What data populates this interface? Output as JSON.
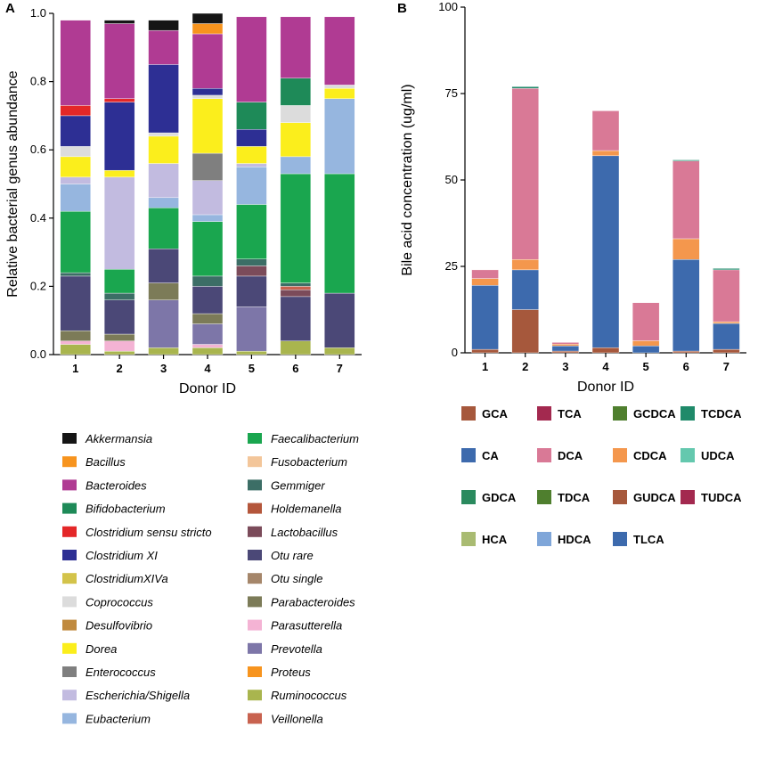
{
  "panel_a_label": "A",
  "panel_b_label": "B",
  "chart_data": [
    {
      "type": "bar",
      "stacked": true,
      "title": "",
      "xlabel": "Donor ID",
      "ylabel": "Relative bacterial genus abundance",
      "categories": [
        "1",
        "2",
        "3",
        "4",
        "5",
        "6",
        "7"
      ],
      "ylim": [
        0,
        1.0
      ],
      "yticks": [
        "0.0",
        "0.2",
        "0.4",
        "0.6",
        "0.8",
        "1.0"
      ],
      "series": [
        {
          "name": "Ruminococcus",
          "color": "#a9b54e",
          "values": [
            0.03,
            0.01,
            0.02,
            0.02,
            0.01,
            0.04,
            0.02
          ]
        },
        {
          "name": "Parasutterella",
          "color": "#f4b3d4",
          "values": [
            0.01,
            0.03,
            0,
            0.01,
            0,
            0,
            0
          ]
        },
        {
          "name": "Prevotella",
          "color": "#7d76a8",
          "values": [
            0,
            0,
            0.14,
            0.06,
            0.13,
            0,
            0
          ]
        },
        {
          "name": "Parabacteroides",
          "color": "#7c7b58",
          "values": [
            0.03,
            0.02,
            0.05,
            0.03,
            0,
            0,
            0
          ]
        },
        {
          "name": "Otu rare",
          "color": "#4b4877",
          "values": [
            0.16,
            0.1,
            0.1,
            0.08,
            0.09,
            0.13,
            0.16
          ]
        },
        {
          "name": "Lactobacillus",
          "color": "#7b4b5a",
          "values": [
            0,
            0,
            0,
            0,
            0.03,
            0.02,
            0
          ]
        },
        {
          "name": "Veillonella",
          "color": "#c8624f",
          "values": [
            0,
            0,
            0,
            0,
            0,
            0.01,
            0
          ]
        },
        {
          "name": "Gemmiger",
          "color": "#3c6e66",
          "values": [
            0.01,
            0.02,
            0,
            0.03,
            0.02,
            0.01,
            0
          ]
        },
        {
          "name": "Faecalibacterium",
          "color": "#1aa64f",
          "values": [
            0.18,
            0.07,
            0.12,
            0.16,
            0.16,
            0.32,
            0.35
          ]
        },
        {
          "name": "Eubacterium",
          "color": "#96b6df",
          "values": [
            0.08,
            0,
            0.03,
            0.02,
            0.11,
            0.05,
            0.22
          ]
        },
        {
          "name": "Escherichia/Shigella",
          "color": "#c2bbe0",
          "values": [
            0.02,
            0.27,
            0.1,
            0.1,
            0.01,
            0,
            0
          ]
        },
        {
          "name": "Enterococcus",
          "color": "#7f7f7f",
          "values": [
            0,
            0,
            0,
            0.08,
            0,
            0,
            0
          ]
        },
        {
          "name": "Dorea",
          "color": "#fbee1c",
          "values": [
            0.06,
            0.02,
            0.08,
            0.16,
            0.05,
            0.1,
            0.03
          ]
        },
        {
          "name": "Coprococcus",
          "color": "#dcdcdc",
          "values": [
            0.03,
            0,
            0.01,
            0.01,
            0,
            0.05,
            0.01
          ]
        },
        {
          "name": "Clostridium XI",
          "color": "#2d2f94",
          "values": [
            0.09,
            0.2,
            0.2,
            0.02,
            0.05,
            0,
            0
          ]
        },
        {
          "name": "Clostridium sensu stricto",
          "color": "#e42728",
          "values": [
            0.03,
            0.01,
            0,
            0,
            0,
            0,
            0
          ]
        },
        {
          "name": "Bifidobacterium",
          "color": "#1e8a58",
          "values": [
            0,
            0,
            0,
            0,
            0.08,
            0.08,
            0
          ]
        },
        {
          "name": "Bacteroides",
          "color": "#b03b93",
          "values": [
            0.25,
            0.22,
            0.1,
            0.16,
            0.25,
            0.18,
            0.2
          ]
        },
        {
          "name": "Bacillus",
          "color": "#f7941e",
          "values": [
            0,
            0,
            0,
            0.03,
            0,
            0,
            0
          ]
        },
        {
          "name": "Akkermansia",
          "color": "#151515",
          "values": [
            0,
            0.01,
            0.03,
            0.03,
            0,
            0,
            0
          ]
        }
      ],
      "legend": [
        [
          "Akkermansia",
          "#151515"
        ],
        [
          "Bacillus",
          "#f7941e"
        ],
        [
          "Bacteroides",
          "#b03b93"
        ],
        [
          "Bifidobacterium",
          "#1e8a58"
        ],
        [
          "Clostridium sensu stricto",
          "#e42728"
        ],
        [
          "Clostridium XI",
          "#2d2f94"
        ],
        [
          "ClostridiumXIVa",
          "#d3c34a"
        ],
        [
          "Coprococcus",
          "#dcdcdc"
        ],
        [
          "Desulfovibrio",
          "#c08a3e"
        ],
        [
          "Dorea",
          "#fbee1c"
        ],
        [
          "Enterococcus",
          "#7f7f7f"
        ],
        [
          "Escherichia/Shigella",
          "#c2bbe0"
        ],
        [
          "Eubacterium",
          "#96b6df"
        ],
        [
          "Faecalibacterium",
          "#1aa64f"
        ],
        [
          "Fusobacterium",
          "#f3c69a"
        ],
        [
          "Gemmiger",
          "#3c6e66"
        ],
        [
          "Holdemanella",
          "#b4563b"
        ],
        [
          "Lactobacillus",
          "#7b4b5a"
        ],
        [
          "Otu rare",
          "#4b4877"
        ],
        [
          "Otu single",
          "#a5866a"
        ],
        [
          "Parabacteroides",
          "#7c7b58"
        ],
        [
          "Parasutterella",
          "#f4b3d4"
        ],
        [
          "Prevotella",
          "#7d76a8"
        ],
        [
          "Proteus",
          "#f7941e"
        ],
        [
          "Ruminococcus",
          "#a9b54e"
        ],
        [
          "Veillonella",
          "#c8624f"
        ]
      ]
    },
    {
      "type": "bar",
      "stacked": true,
      "title": "",
      "xlabel": "Donor ID",
      "ylabel": "Bile acid concentration (ug/ml)",
      "categories": [
        "1",
        "2",
        "3",
        "4",
        "5",
        "6",
        "7"
      ],
      "ylim": [
        0,
        100
      ],
      "yticks": [
        "0",
        "25",
        "50",
        "75",
        "100"
      ],
      "series": [
        {
          "name": "GCA",
          "color": "#a6583c",
          "values": [
            1,
            12.5,
            0.5,
            1.5,
            0,
            0.5,
            1
          ]
        },
        {
          "name": "CA",
          "color": "#3d6aad",
          "values": [
            18.5,
            11.5,
            1.5,
            55.5,
            2,
            26.5,
            7.5
          ]
        },
        {
          "name": "CDCA",
          "color": "#f4974d",
          "values": [
            2,
            3,
            0.5,
            1.5,
            1.5,
            6,
            0.5
          ]
        },
        {
          "name": "DCA",
          "color": "#d97996",
          "values": [
            2.5,
            49.5,
            0.5,
            11.5,
            11,
            22.5,
            15
          ]
        },
        {
          "name": "TCDCA",
          "color": "#1f8a6a",
          "values": [
            0,
            0.5,
            0,
            0,
            0,
            0.3,
            0.4
          ]
        }
      ],
      "legend": [
        [
          "GCA",
          "#a6583c"
        ],
        [
          "TCA",
          "#a3294f"
        ],
        [
          "GCDCA",
          "#4f7f2e"
        ],
        [
          "TCDCA",
          "#1f8a6a"
        ],
        [
          "CA",
          "#3d6aad"
        ],
        [
          "DCA",
          "#d97996"
        ],
        [
          "CDCA",
          "#f4974d"
        ],
        [
          "UDCA",
          "#64c8ae"
        ],
        [
          "GDCA",
          "#2a8a5e"
        ],
        [
          "TDCA",
          "#4f7f2e"
        ],
        [
          "GUDCA",
          "#a6583c"
        ],
        [
          "TUDCA",
          "#a3294f"
        ],
        [
          "HCA",
          "#a9bb72"
        ],
        [
          "HDCA",
          "#7fa6d9"
        ],
        [
          "TLCA",
          "#3d6aad"
        ]
      ]
    }
  ]
}
